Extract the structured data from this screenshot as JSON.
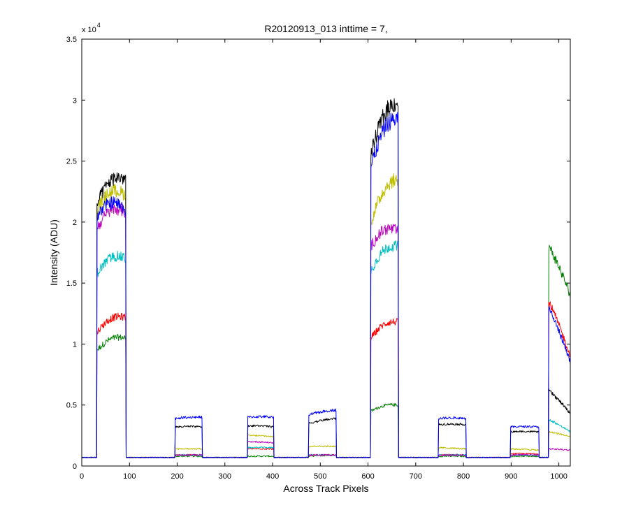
{
  "chart_data": {
    "type": "line",
    "title": "R20120913_013 inttime = 7,",
    "xlabel": "Across Track Pixels",
    "ylabel": "Intensity (ADU)",
    "y_multiplier": "x 10",
    "y_multiplier_exponent": "4",
    "xlim": [
      0,
      1024
    ],
    "ylim": [
      0,
      35000
    ],
    "grid": false,
    "legend": "none",
    "x_ticks": [
      0,
      100,
      200,
      300,
      400,
      500,
      600,
      700,
      800,
      900,
      1000
    ],
    "x_tick_labels": [
      "0",
      "100",
      "200",
      "300",
      "400",
      "500",
      "600",
      "700",
      "800",
      "900",
      "1000"
    ],
    "y_ticks": [
      0,
      5000,
      10000,
      15000,
      20000,
      25000,
      30000,
      35000
    ],
    "y_tick_labels": [
      "0",
      "0.5",
      "1",
      "1.5",
      "2",
      "2.5",
      "3",
      "3.5"
    ],
    "baseline": 700,
    "blocks": [
      {
        "x0": 32,
        "x1": 92
      },
      {
        "x0": 196,
        "x1": 252
      },
      {
        "x0": 348,
        "x1": 402
      },
      {
        "x0": 476,
        "x1": 533
      },
      {
        "x0": 606,
        "x1": 663
      },
      {
        "x0": 748,
        "x1": 805
      },
      {
        "x0": 899,
        "x1": 958
      },
      {
        "x0": 979,
        "x1": 1024
      }
    ],
    "series": [
      {
        "color": "#008000",
        "levels": [
          [
            9500,
            10500
          ],
          [
            800,
            800
          ],
          [
            800,
            800
          ],
          [
            800,
            900
          ],
          [
            4500,
            5000
          ],
          [
            800,
            800
          ],
          [
            800,
            800
          ],
          [
            18000,
            14000
          ]
        ]
      },
      {
        "color": "#ff0000",
        "levels": [
          [
            11000,
            12200
          ],
          [
            900,
            900
          ],
          [
            1400,
            1400
          ],
          [
            900,
            900
          ],
          [
            10500,
            11800
          ],
          [
            900,
            900
          ],
          [
            1000,
            1000
          ],
          [
            13500,
            9000
          ]
        ]
      },
      {
        "color": "#00bfbf",
        "levels": [
          [
            15800,
            17000
          ],
          [
            900,
            900
          ],
          [
            1500,
            1500
          ],
          [
            900,
            900
          ],
          [
            16000,
            18000
          ],
          [
            900,
            900
          ],
          [
            900,
            900
          ],
          [
            3800,
            2800
          ]
        ]
      },
      {
        "color": "#bf00bf",
        "levels": [
          [
            19500,
            20800
          ],
          [
            900,
            900
          ],
          [
            2000,
            1900
          ],
          [
            900,
            900
          ],
          [
            18000,
            19200
          ],
          [
            900,
            900
          ],
          [
            900,
            900
          ],
          [
            1400,
            1300
          ]
        ]
      },
      {
        "color": "#bfbf00",
        "levels": [
          [
            21000,
            22200
          ],
          [
            1400,
            1400
          ],
          [
            2500,
            2400
          ],
          [
            1600,
            1600
          ],
          [
            20000,
            23500
          ],
          [
            1500,
            1400
          ],
          [
            1400,
            1300
          ],
          [
            2800,
            2400
          ]
        ]
      },
      {
        "color": "#000000",
        "levels": [
          [
            21500,
            23500
          ],
          [
            3200,
            3200
          ],
          [
            3300,
            3200
          ],
          [
            3500,
            3900
          ],
          [
            25500,
            29800
          ],
          [
            3400,
            3400
          ],
          [
            2800,
            2800
          ],
          [
            6200,
            4300
          ]
        ]
      },
      {
        "color": "#0000ff",
        "levels": [
          [
            20500,
            21000
          ],
          [
            3900,
            4000
          ],
          [
            4000,
            4000
          ],
          [
            4200,
            4600
          ],
          [
            24500,
            28500
          ],
          [
            3900,
            3900
          ],
          [
            3200,
            3200
          ],
          [
            13000,
            8500
          ]
        ]
      }
    ]
  }
}
